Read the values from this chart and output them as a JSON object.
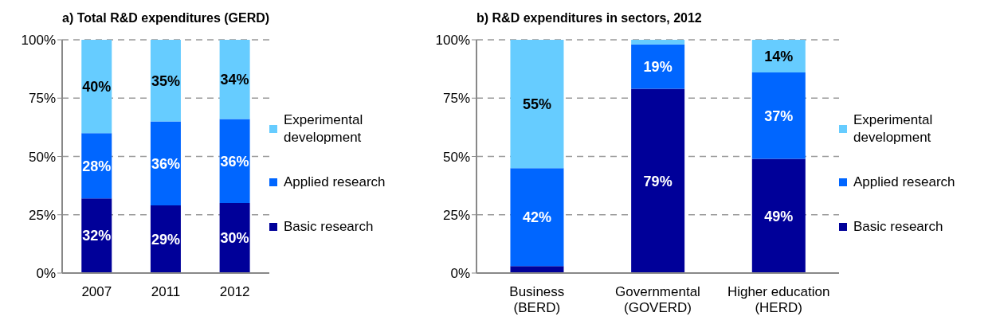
{
  "chart_data": [
    {
      "type": "bar",
      "title": "a) Total R&D expenditures (GERD)",
      "categories": [
        "2007",
        "2011",
        "2012"
      ],
      "stacked": true,
      "ylim": [
        0,
        100
      ],
      "yticks": [
        {
          "value": 0,
          "label": "0%"
        },
        {
          "value": 25,
          "label": "25%"
        },
        {
          "value": 50,
          "label": "50%"
        },
        {
          "value": 75,
          "label": "75%"
        },
        {
          "value": 100,
          "label": "100%"
        }
      ],
      "grid": "y",
      "legend": "right",
      "series": [
        {
          "name": "Basic research",
          "color": "#000099",
          "values": [
            32,
            29,
            30
          ],
          "value_labels": [
            "32%",
            "29%",
            "30%"
          ]
        },
        {
          "name": "Applied research",
          "color": "#0066ff",
          "values": [
            28,
            36,
            36
          ],
          "value_labels": [
            "28%",
            "36%",
            "36%"
          ]
        },
        {
          "name": "Experimental development",
          "color": "#66ccff",
          "values": [
            40,
            35,
            34
          ],
          "value_labels": [
            "40%",
            "35%",
            "34%"
          ]
        }
      ]
    },
    {
      "type": "bar",
      "title": "b) R&D expenditures in sectors, 2012",
      "categories": [
        "Business\n(BERD)",
        "Governmental\n(GOVERD)",
        "Higher education\n(HERD)"
      ],
      "stacked": true,
      "ylim": [
        0,
        100
      ],
      "yticks": [
        {
          "value": 0,
          "label": "0%"
        },
        {
          "value": 25,
          "label": "25%"
        },
        {
          "value": 50,
          "label": "50%"
        },
        {
          "value": 75,
          "label": "75%"
        },
        {
          "value": 100,
          "label": "100%"
        }
      ],
      "grid": "y",
      "legend": "right",
      "series": [
        {
          "name": "Basic research",
          "color": "#000099",
          "values": [
            3,
            79,
            49
          ],
          "value_labels": [
            null,
            "79%",
            "49%"
          ]
        },
        {
          "name": "Applied research",
          "color": "#0066ff",
          "values": [
            42,
            19,
            37
          ],
          "value_labels": [
            "42%",
            "19%",
            "37%"
          ]
        },
        {
          "name": "Experimental development",
          "color": "#66ccff",
          "values": [
            55,
            2,
            14
          ],
          "value_labels": [
            "55%",
            null,
            "14%"
          ]
        }
      ]
    }
  ]
}
